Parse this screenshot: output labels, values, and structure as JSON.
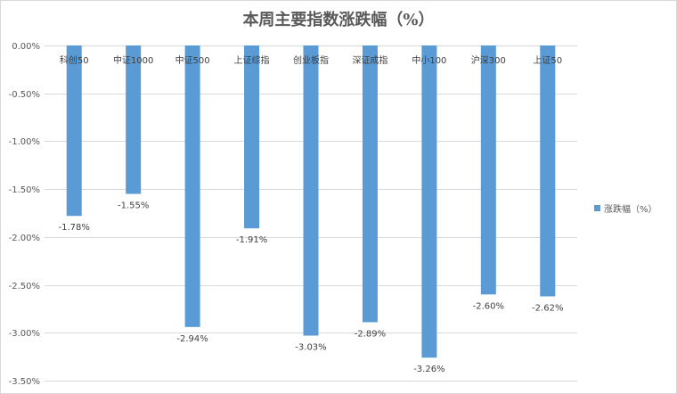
{
  "colors": {
    "bar": "#5b9bd5",
    "grid": "#d9d9d9",
    "text": "#595959"
  },
  "chart_data": {
    "type": "bar",
    "title": "本周主要指数涨跌幅（%）",
    "categories": [
      "科创50",
      "中证1000",
      "中证500",
      "上证综指",
      "创业板指",
      "深证成指",
      "中小100",
      "沪深300",
      "上证50"
    ],
    "series": [
      {
        "name": "涨跌幅（%）",
        "values": [
          -1.78,
          -1.55,
          -2.94,
          -1.91,
          -3.03,
          -2.89,
          -3.26,
          -2.6,
          -2.62
        ],
        "labels": [
          "-1.78%",
          "-1.55%",
          "-2.94%",
          "-1.91%",
          "-3.03%",
          "-2.89%",
          "-3.26%",
          "-2.60%",
          "-2.62%"
        ]
      }
    ],
    "ylim": [
      -3.5,
      0
    ],
    "yticks": [
      0,
      -0.5,
      -1.0,
      -1.5,
      -2.0,
      -2.5,
      -3.0,
      -3.5
    ],
    "ytick_labels": [
      "0.00%",
      "-0.50%",
      "-1.00%",
      "-1.50%",
      "-2.00%",
      "-2.50%",
      "-3.00%",
      "-3.50%"
    ],
    "grid": true,
    "legend_position": "right",
    "xlabel": "",
    "ylabel": ""
  }
}
